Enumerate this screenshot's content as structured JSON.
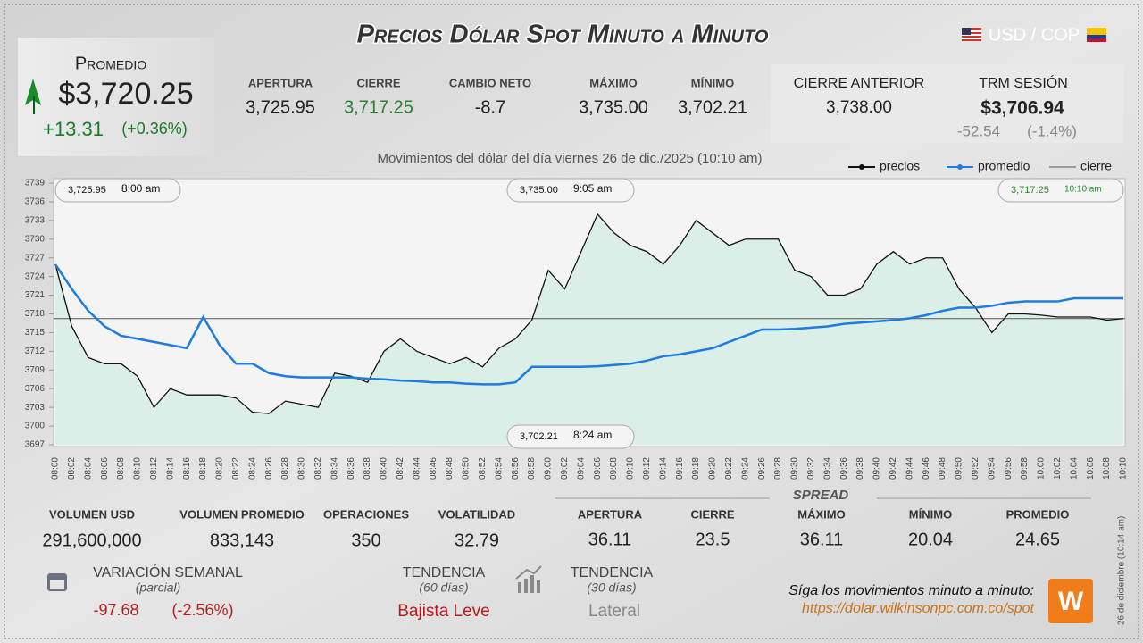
{
  "header": {
    "title": "Precios Dólar Spot Minuto a Minuto",
    "pair": "USD / COP"
  },
  "promedio": {
    "label": "Promedio",
    "value": "$3,720.25",
    "change": "+13.31",
    "change_pct": "(+0.36%)"
  },
  "stats": [
    {
      "label": "APERTURA",
      "value": "3,725.95"
    },
    {
      "label": "CIERRE",
      "value": "3,717.25"
    },
    {
      "label": "CAMBIO NETO",
      "value": "-8.7"
    },
    {
      "label": "MÁXIMO",
      "value": "3,735.00"
    },
    {
      "label": "MÍNIMO",
      "value": "3,702.21"
    }
  ],
  "previous": {
    "label": "CIERRE ANTERIOR",
    "value": "3,738.00"
  },
  "trm": {
    "label": "TRM SESIÓN",
    "value": "$3,706.94",
    "change": "-52.54",
    "change_pct": "(-1.4%)"
  },
  "chart_data": {
    "type": "line",
    "subtitle": "Movimientos del dólar del día viernes 26 de dic./2025 (10:10 am)",
    "categories": [
      "08:00",
      "08:02",
      "08:04",
      "08:06",
      "08:08",
      "08:10",
      "08:12",
      "08:14",
      "08:16",
      "08:18",
      "08:20",
      "08:22",
      "08:24",
      "08:26",
      "08:28",
      "08:30",
      "08:32",
      "08:34",
      "08:36",
      "08:38",
      "08:40",
      "08:42",
      "08:44",
      "08:46",
      "08:48",
      "08:50",
      "08:52",
      "08:54",
      "08:56",
      "08:58",
      "09:00",
      "09:02",
      "09:04",
      "09:06",
      "09:08",
      "09:10",
      "09:12",
      "09:14",
      "09:16",
      "09:18",
      "09:20",
      "09:22",
      "09:24",
      "09:26",
      "09:28",
      "09:30",
      "09:32",
      "09:34",
      "09:36",
      "09:38",
      "09:40",
      "09:42",
      "09:44",
      "09:46",
      "09:48",
      "09:50",
      "09:52",
      "09:54",
      "09:56",
      "09:58",
      "10:00",
      "10:02",
      "10:04",
      "10:06",
      "10:08",
      "10:10"
    ],
    "series": [
      {
        "name": "precios",
        "color": "#111111",
        "values": [
          3725.95,
          3716,
          3711,
          3710,
          3710,
          3708,
          3703,
          3706,
          3705,
          3705,
          3705,
          3704.5,
          3702.21,
          3702,
          3704,
          3703.5,
          3703,
          3708.5,
          3708,
          3707,
          3712,
          3714,
          3712,
          3711,
          3710,
          3711,
          3709.5,
          3712.5,
          3714,
          3717,
          3725,
          3722,
          3728,
          3734,
          3731,
          3729,
          3728,
          3726,
          3729,
          3733,
          3731,
          3729,
          3730,
          3730,
          3730,
          3725,
          3724,
          3721,
          3721,
          3722,
          3726,
          3728,
          3726,
          3727,
          3727,
          3722,
          3719,
          3715,
          3718,
          3718,
          3717.8,
          3717.5,
          3717.5,
          3717.5,
          3717,
          3717.25
        ]
      },
      {
        "name": "promedio",
        "color": "#1e7be0",
        "values": [
          3725.95,
          3722,
          3718.5,
          3716,
          3714.5,
          3714,
          3713.5,
          3713,
          3712.5,
          3717.5,
          3713,
          3710,
          3710,
          3708.5,
          3708,
          3707.8,
          3707.8,
          3707.8,
          3707.8,
          3707.6,
          3707.5,
          3707.3,
          3707.2,
          3707,
          3707,
          3706.8,
          3706.7,
          3706.7,
          3707,
          3709.5,
          3709.5,
          3709.5,
          3709.5,
          3709.6,
          3709.8,
          3710,
          3710.5,
          3711.2,
          3711.5,
          3712,
          3712.5,
          3713.5,
          3714.5,
          3715.5,
          3715.5,
          3715.6,
          3715.8,
          3716,
          3716.4,
          3716.6,
          3716.8,
          3717,
          3717.3,
          3717.8,
          3718.5,
          3719,
          3719,
          3719.3,
          3719.8,
          3720,
          3720,
          3720,
          3720.5,
          3720.5,
          3720.5,
          3720.5
        ]
      }
    ],
    "reference_lines": [
      {
        "name": "cierre",
        "value": 3717.25,
        "color": "#555555"
      }
    ],
    "area_color": "#d8ede6",
    "ylim": [
      3697,
      3739
    ],
    "yticks": [
      3697,
      3700,
      3703,
      3706,
      3709,
      3712,
      3715,
      3718,
      3721,
      3724,
      3727,
      3730,
      3733,
      3736,
      3739
    ],
    "annotations": [
      {
        "value": "3,725.95",
        "time": "8:00 am"
      },
      {
        "value": "3,735.00",
        "time": "9:05 am"
      },
      {
        "value": "3,717.25",
        "time": "10:10 am"
      },
      {
        "value": "3,702.21",
        "time": "8:24 am"
      }
    ]
  },
  "volume": [
    {
      "label": "VOLUMEN USD",
      "value": "291,600,000"
    },
    {
      "label": "VOLUMEN PROMEDIO",
      "value": "833,143"
    },
    {
      "label": "OPERACIONES",
      "value": "350"
    },
    {
      "label": "VOLATILIDAD",
      "value": "32.79"
    }
  ],
  "spread": {
    "title": "SPREAD",
    "items": [
      {
        "label": "APERTURA",
        "value": "36.11"
      },
      {
        "label": "CIERRE",
        "value": "23.5"
      },
      {
        "label": "MÁXIMO",
        "value": "36.11"
      },
      {
        "label": "MÍNIMO",
        "value": "20.04"
      },
      {
        "label": "PROMEDIO",
        "value": "24.65"
      }
    ]
  },
  "weekly": {
    "label": "VARIACIÓN SEMANAL",
    "sublabel": "(parcial)",
    "value": "-97.68",
    "pct": "(-2.56%)"
  },
  "trend60": {
    "label": "TENDENCIA",
    "sublabel": "(60 días)",
    "value": "Bajista Leve"
  },
  "trend30": {
    "label": "TENDENCIA",
    "sublabel": "(30 días)",
    "value": "Lateral"
  },
  "footer": {
    "follow": "Síga los movimientos minuto a minuto:",
    "url": "https://dolar.wilkinsonpc.com.co/spot",
    "note": "26 de diciembre (10:14 am)"
  }
}
